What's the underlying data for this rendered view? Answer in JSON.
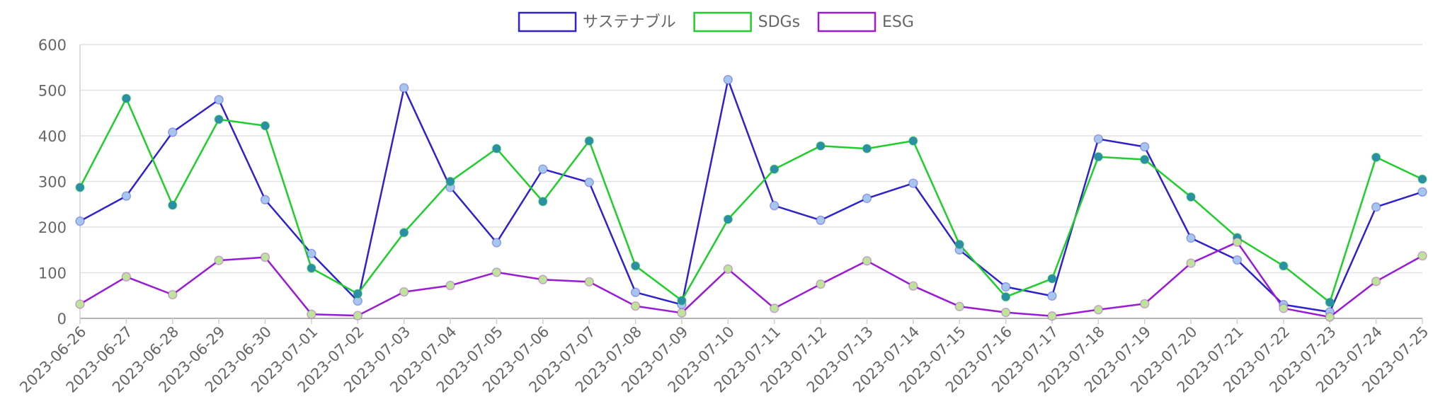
{
  "chart_data": {
    "type": "line",
    "title": "",
    "xlabel": "",
    "ylabel": "",
    "ylim": [
      0,
      600
    ],
    "yticks": [
      0,
      100,
      200,
      300,
      400,
      500,
      600
    ],
    "grid": true,
    "legend_position": "top-center",
    "x": [
      "2023-06-26",
      "2023-06-27",
      "2023-06-28",
      "2023-06-29",
      "2023-06-30",
      "2023-07-01",
      "2023-07-02",
      "2023-07-03",
      "2023-07-04",
      "2023-07-05",
      "2023-07-06",
      "2023-07-07",
      "2023-07-08",
      "2023-07-09",
      "2023-07-10",
      "2023-07-11",
      "2023-07-12",
      "2023-07-13",
      "2023-07-14",
      "2023-07-15",
      "2023-07-16",
      "2023-07-17",
      "2023-07-18",
      "2023-07-19",
      "2023-07-20",
      "2023-07-21",
      "2023-07-22",
      "2023-07-23",
      "2023-07-24",
      "2023-07-25"
    ],
    "series": [
      {
        "name": "サステナブル",
        "color": "#2f22cc",
        "point_color": "#a7c6ee",
        "values": [
          213,
          268,
          408,
          479,
          260,
          142,
          38,
          505,
          287,
          166,
          327,
          298,
          57,
          30,
          523,
          247,
          215,
          263,
          296,
          150,
          69,
          49,
          393,
          376,
          176,
          128,
          30,
          14,
          244,
          277
        ]
      },
      {
        "name": "SDGs",
        "color": "#1ecf2b",
        "point_color": "#2b8fa5",
        "values": [
          287,
          482,
          248,
          436,
          422,
          110,
          54,
          188,
          300,
          372,
          256,
          389,
          115,
          39,
          217,
          327,
          378,
          372,
          389,
          162,
          47,
          87,
          354,
          348,
          266,
          177,
          115,
          35,
          353,
          305
        ]
      },
      {
        "name": "ESG",
        "color": "#9a1ad6",
        "point_color": "#bfe39a",
        "values": [
          31,
          91,
          52,
          127,
          134,
          9,
          6,
          58,
          72,
          101,
          85,
          80,
          27,
          12,
          108,
          22,
          75,
          126,
          71,
          26,
          13,
          5,
          19,
          32,
          121,
          167,
          22,
          3,
          81,
          137
        ]
      }
    ]
  }
}
